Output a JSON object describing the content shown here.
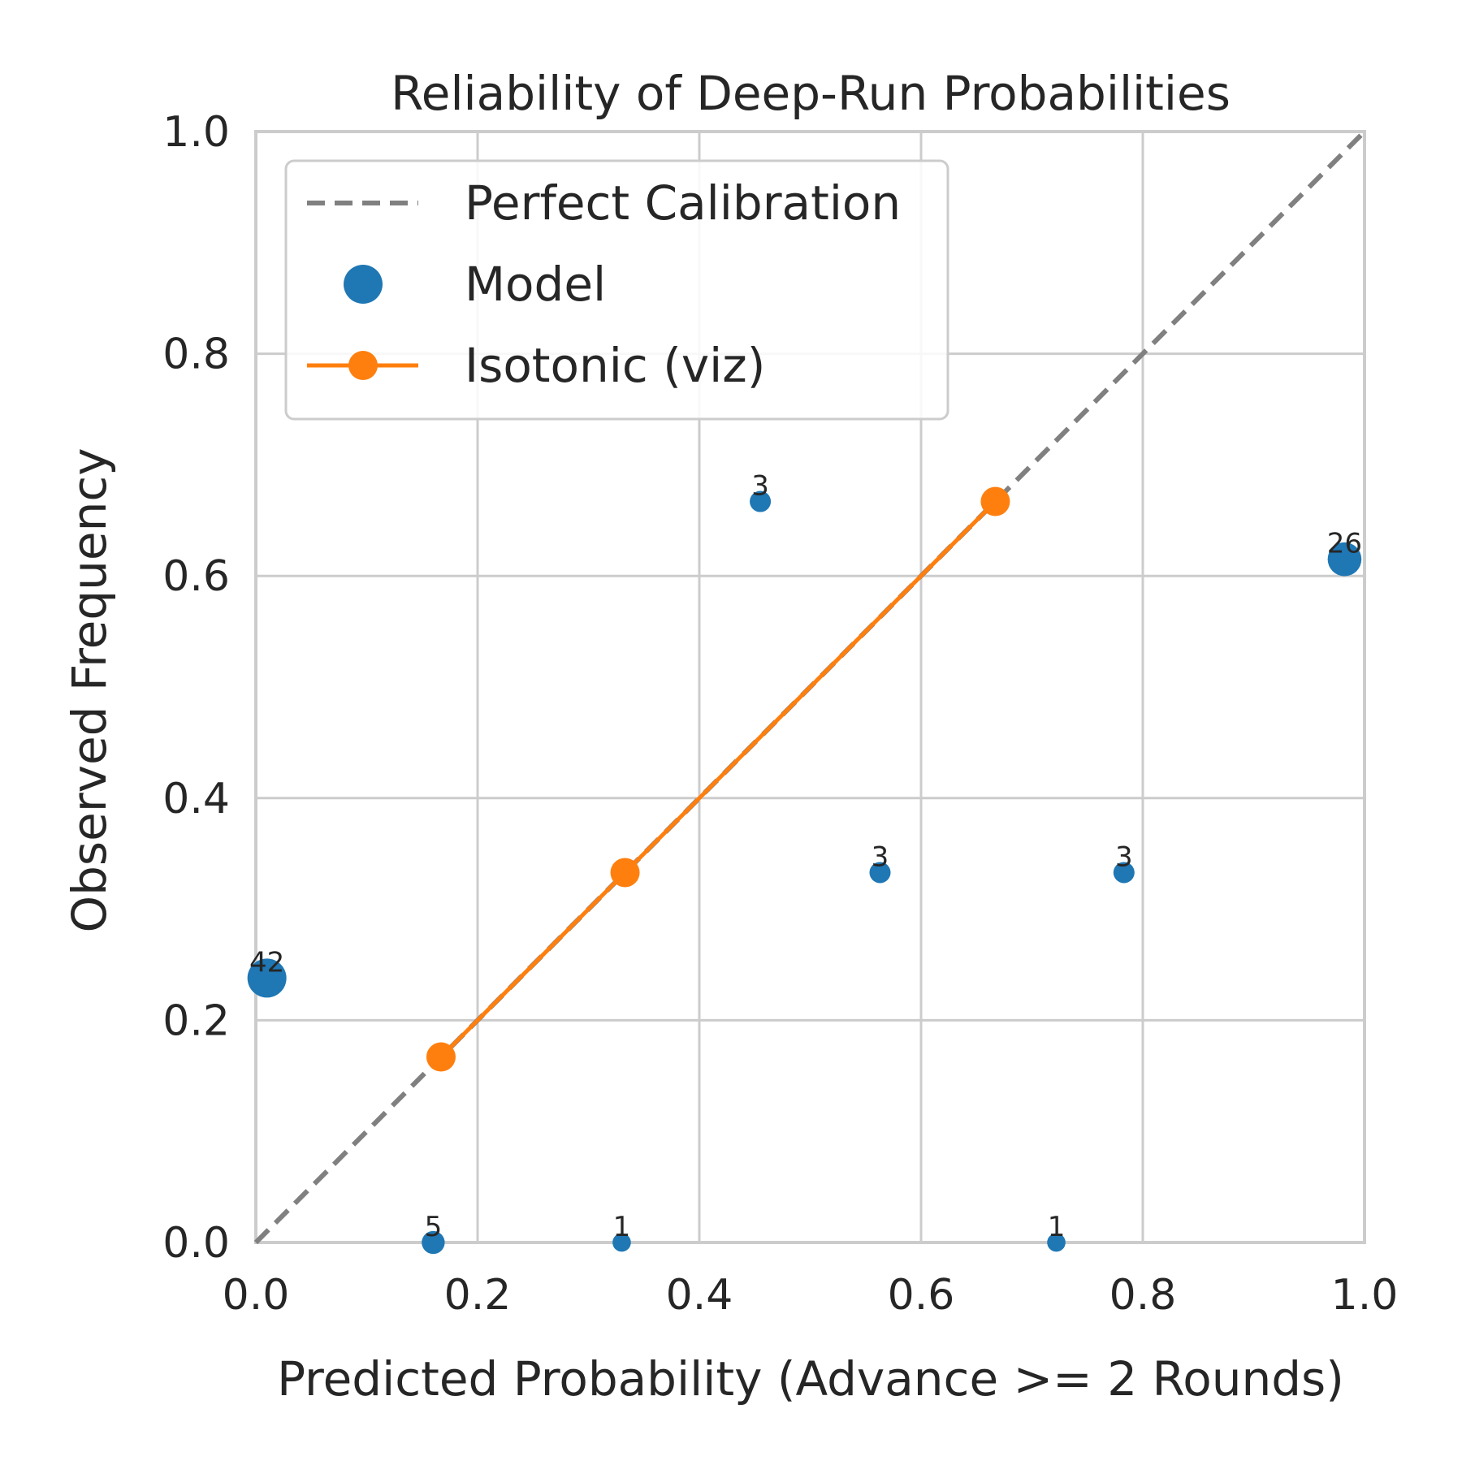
{
  "chart_data": {
    "type": "scatter",
    "title": "Reliability of Deep-Run Probabilities",
    "xlabel": "Predicted Probability (Advance >= 2 Rounds)",
    "ylabel": "Observed Frequency",
    "xlim": [
      0.0,
      1.0
    ],
    "ylim": [
      0.0,
      1.0
    ],
    "xticks": [
      "0.0",
      "0.2",
      "0.4",
      "0.6",
      "0.8",
      "1.0"
    ],
    "yticks": [
      "0.0",
      "0.2",
      "0.4",
      "0.6",
      "0.8",
      "1.0"
    ],
    "grid": true,
    "legend": {
      "position": "top-left",
      "entries": [
        "Perfect Calibration",
        "Model",
        "Isotonic (viz)"
      ]
    },
    "series": [
      {
        "name": "Perfect Calibration",
        "kind": "dashed-line",
        "color": "#808080",
        "x": [
          0.0,
          1.0
        ],
        "y": [
          0.0,
          1.0
        ]
      },
      {
        "name": "Model",
        "kind": "scatter",
        "color": "#1f77b4",
        "points": [
          {
            "x": 0.01,
            "y": 0.238,
            "n": "42"
          },
          {
            "x": 0.16,
            "y": 0.0,
            "n": "5"
          },
          {
            "x": 0.33,
            "y": 0.0,
            "n": "1"
          },
          {
            "x": 0.455,
            "y": 0.667,
            "n": "3"
          },
          {
            "x": 0.563,
            "y": 0.333,
            "n": "3"
          },
          {
            "x": 0.722,
            "y": 0.0,
            "n": "1"
          },
          {
            "x": 0.783,
            "y": 0.333,
            "n": "3"
          },
          {
            "x": 0.982,
            "y": 0.615,
            "n": "26"
          }
        ]
      },
      {
        "name": "Isotonic (viz)",
        "kind": "line-markers",
        "color": "#ff7f0e",
        "x": [
          0.167,
          0.333,
          0.667
        ],
        "y": [
          0.167,
          0.333,
          0.667
        ]
      }
    ]
  }
}
